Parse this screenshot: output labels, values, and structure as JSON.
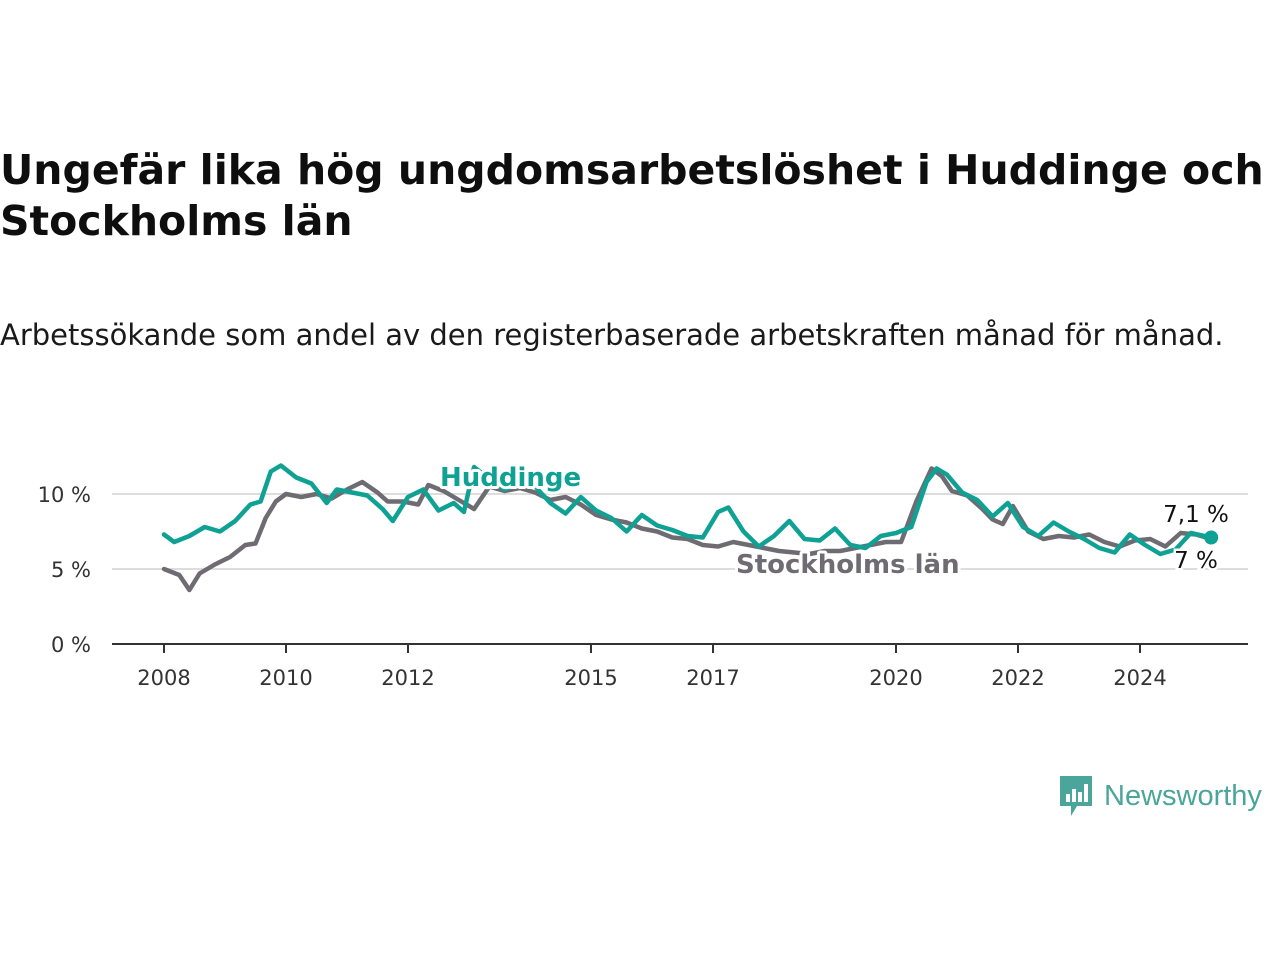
{
  "title": "Ungefär lika hög ungdomsarbetslöshet i Huddinge och Stockholms län",
  "subtitle": "Arbetssökande som andel av den registerbaserade arbetskraften månad för månad.",
  "brand": {
    "name": "Newsworthy",
    "icon": "newsworthy-logo-icon",
    "color": "#4aa59a"
  },
  "chart_data": {
    "type": "line",
    "x_ticks": [
      "2008",
      "2010",
      "2012",
      "2015",
      "2017",
      "2020",
      "2022",
      "2024"
    ],
    "y_ticks": [
      "0 %",
      "5 %",
      "10 %"
    ],
    "ylim": [
      0,
      12
    ],
    "grid": "horizontal",
    "series": [
      {
        "name": "Stockholms län",
        "color": "#6e6c72",
        "end_label": "7 %",
        "points": [
          [
            "2008-01",
            5.0
          ],
          [
            "2008-04",
            4.6
          ],
          [
            "2008-06",
            3.6
          ],
          [
            "2008-08",
            4.7
          ],
          [
            "2008-11",
            5.3
          ],
          [
            "2009-02",
            5.8
          ],
          [
            "2009-05",
            6.6
          ],
          [
            "2009-07",
            6.7
          ],
          [
            "2009-09",
            8.4
          ],
          [
            "2009-11",
            9.5
          ],
          [
            "2010-01",
            10.0
          ],
          [
            "2010-04",
            9.8
          ],
          [
            "2010-07",
            10.0
          ],
          [
            "2010-10",
            9.7
          ],
          [
            "2011-01",
            10.3
          ],
          [
            "2011-04",
            10.8
          ],
          [
            "2011-07",
            10.1
          ],
          [
            "2011-09",
            9.5
          ],
          [
            "2011-12",
            9.5
          ],
          [
            "2012-03",
            9.3
          ],
          [
            "2012-05",
            10.6
          ],
          [
            "2012-08",
            10.2
          ],
          [
            "2012-11",
            9.6
          ],
          [
            "2013-02",
            9.0
          ],
          [
            "2013-05",
            10.5
          ],
          [
            "2013-08",
            10.2
          ],
          [
            "2013-11",
            10.4
          ],
          [
            "2014-02",
            10.1
          ],
          [
            "2014-05",
            9.6
          ],
          [
            "2014-08",
            9.8
          ],
          [
            "2014-11",
            9.3
          ],
          [
            "2015-02",
            8.6
          ],
          [
            "2015-05",
            8.3
          ],
          [
            "2015-08",
            8.1
          ],
          [
            "2015-11",
            7.7
          ],
          [
            "2016-02",
            7.5
          ],
          [
            "2016-05",
            7.1
          ],
          [
            "2016-08",
            7.0
          ],
          [
            "2016-11",
            6.6
          ],
          [
            "2017-02",
            6.5
          ],
          [
            "2017-05",
            6.8
          ],
          [
            "2017-08",
            6.6
          ],
          [
            "2017-11",
            6.4
          ],
          [
            "2018-02",
            6.2
          ],
          [
            "2018-05",
            6.1
          ],
          [
            "2018-08",
            6.0
          ],
          [
            "2018-11",
            6.2
          ],
          [
            "2019-02",
            6.2
          ],
          [
            "2019-05",
            6.4
          ],
          [
            "2019-08",
            6.6
          ],
          [
            "2019-11",
            6.8
          ],
          [
            "2020-02",
            6.8
          ],
          [
            "2020-05",
            9.5
          ],
          [
            "2020-08",
            11.7
          ],
          [
            "2020-10",
            11.2
          ],
          [
            "2020-12",
            10.2
          ],
          [
            "2021-03",
            9.9
          ],
          [
            "2021-06",
            9.0
          ],
          [
            "2021-08",
            8.3
          ],
          [
            "2021-10",
            8.0
          ],
          [
            "2021-12",
            9.2
          ],
          [
            "2022-03",
            7.5
          ],
          [
            "2022-06",
            7.0
          ],
          [
            "2022-09",
            7.2
          ],
          [
            "2022-12",
            7.1
          ],
          [
            "2023-03",
            7.3
          ],
          [
            "2023-06",
            6.8
          ],
          [
            "2023-09",
            6.5
          ],
          [
            "2023-12",
            6.9
          ],
          [
            "2024-03",
            7.0
          ],
          [
            "2024-06",
            6.5
          ],
          [
            "2024-09",
            7.4
          ],
          [
            "2024-12",
            7.3
          ],
          [
            "2025-03",
            7.0
          ]
        ]
      },
      {
        "name": "Huddinge",
        "color": "#0fa194",
        "end_label": "7,1 %",
        "points": [
          [
            "2008-01",
            7.3
          ],
          [
            "2008-03",
            6.8
          ],
          [
            "2008-06",
            7.2
          ],
          [
            "2008-09",
            7.8
          ],
          [
            "2008-12",
            7.5
          ],
          [
            "2009-03",
            8.2
          ],
          [
            "2009-06",
            9.3
          ],
          [
            "2009-08",
            9.5
          ],
          [
            "2009-10",
            11.5
          ],
          [
            "2009-12",
            11.9
          ],
          [
            "2010-03",
            11.1
          ],
          [
            "2010-06",
            10.7
          ],
          [
            "2010-09",
            9.4
          ],
          [
            "2010-11",
            10.3
          ],
          [
            "2011-02",
            10.1
          ],
          [
            "2011-05",
            9.9
          ],
          [
            "2011-08",
            9.0
          ],
          [
            "2011-10",
            8.2
          ],
          [
            "2012-01",
            9.8
          ],
          [
            "2012-04",
            10.3
          ],
          [
            "2012-07",
            8.9
          ],
          [
            "2012-10",
            9.4
          ],
          [
            "2012-12",
            8.8
          ],
          [
            "2013-02",
            11.8
          ],
          [
            "2013-05",
            11.0
          ],
          [
            "2013-08",
            10.3
          ],
          [
            "2013-11",
            10.7
          ],
          [
            "2014-02",
            10.5
          ],
          [
            "2014-05",
            9.4
          ],
          [
            "2014-08",
            8.7
          ],
          [
            "2014-11",
            9.8
          ],
          [
            "2015-02",
            8.9
          ],
          [
            "2015-05",
            8.4
          ],
          [
            "2015-08",
            7.5
          ],
          [
            "2015-11",
            8.6
          ],
          [
            "2016-02",
            7.9
          ],
          [
            "2016-05",
            7.6
          ],
          [
            "2016-08",
            7.2
          ],
          [
            "2016-11",
            7.1
          ],
          [
            "2017-02",
            8.8
          ],
          [
            "2017-04",
            9.1
          ],
          [
            "2017-07",
            7.5
          ],
          [
            "2017-10",
            6.5
          ],
          [
            "2018-01",
            7.2
          ],
          [
            "2018-04",
            8.2
          ],
          [
            "2018-07",
            7.0
          ],
          [
            "2018-10",
            6.9
          ],
          [
            "2019-01",
            7.7
          ],
          [
            "2019-04",
            6.6
          ],
          [
            "2019-07",
            6.4
          ],
          [
            "2019-10",
            7.2
          ],
          [
            "2020-01",
            7.4
          ],
          [
            "2020-04",
            7.8
          ],
          [
            "2020-07",
            10.8
          ],
          [
            "2020-09",
            11.7
          ],
          [
            "2020-11",
            11.3
          ],
          [
            "2021-02",
            10.1
          ],
          [
            "2021-05",
            9.6
          ],
          [
            "2021-08",
            8.5
          ],
          [
            "2021-11",
            9.4
          ],
          [
            "2022-02",
            7.8
          ],
          [
            "2022-05",
            7.2
          ],
          [
            "2022-08",
            8.1
          ],
          [
            "2022-11",
            7.5
          ],
          [
            "2023-02",
            7.0
          ],
          [
            "2023-05",
            6.4
          ],
          [
            "2023-08",
            6.1
          ],
          [
            "2023-11",
            7.3
          ],
          [
            "2024-02",
            6.6
          ],
          [
            "2024-05",
            6.0
          ],
          [
            "2024-08",
            6.3
          ],
          [
            "2024-11",
            7.4
          ],
          [
            "2025-03",
            7.1
          ]
        ]
      }
    ]
  }
}
